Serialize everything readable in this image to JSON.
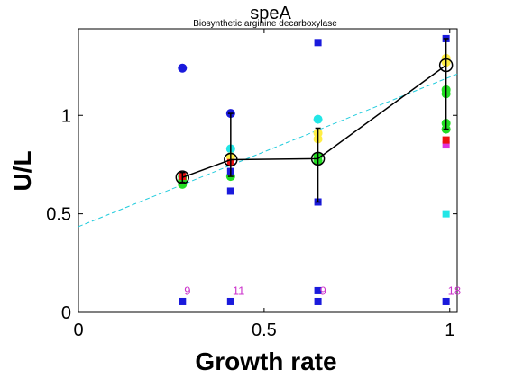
{
  "chart_data": {
    "type": "scatter",
    "title": "speA",
    "subtitle": "Biosynthetic arginine decarboxylase",
    "xlabel": "Growth rate",
    "ylabel": "U/L",
    "xlim": [
      0,
      1.02
    ],
    "ylim": [
      0,
      1.44
    ],
    "xticks": [
      0,
      0.5,
      1
    ],
    "yticks": [
      0,
      0.5,
      1
    ],
    "xtick_labels": [
      "0",
      "0.5",
      "1"
    ],
    "ytick_labels": [
      "0",
      "0.5",
      "1"
    ],
    "grid": false,
    "colors": {
      "mean_line": "#000000",
      "fit_line": "#22ccdd",
      "blue": "#1a1adc",
      "green": "#22dd22",
      "cyan": "#22e6e6",
      "yellow": "#ffee44",
      "red": "#ee1111",
      "magenta": "#dd33dd",
      "orange": "#f5a623"
    },
    "circle_points": [
      {
        "x": 0.28,
        "y": 1.24,
        "color": "blue"
      },
      {
        "x": 0.28,
        "y": 0.69,
        "color": "green"
      },
      {
        "x": 0.28,
        "y": 0.67,
        "color": "green"
      },
      {
        "x": 0.28,
        "y": 0.65,
        "color": "green"
      },
      {
        "x": 0.41,
        "y": 1.01,
        "color": "blue"
      },
      {
        "x": 0.41,
        "y": 0.83,
        "color": "cyan"
      },
      {
        "x": 0.41,
        "y": 0.79,
        "color": "yellow"
      },
      {
        "x": 0.41,
        "y": 0.69,
        "color": "green"
      },
      {
        "x": 0.645,
        "y": 0.98,
        "color": "cyan"
      },
      {
        "x": 0.645,
        "y": 0.91,
        "color": "yellow"
      },
      {
        "x": 0.645,
        "y": 0.88,
        "color": "yellow"
      },
      {
        "x": 0.645,
        "y": 0.79,
        "color": "green"
      },
      {
        "x": 0.645,
        "y": 0.77,
        "color": "green"
      },
      {
        "x": 0.99,
        "y": 1.29,
        "color": "yellow"
      },
      {
        "x": 0.99,
        "y": 1.27,
        "color": "yellow"
      },
      {
        "x": 0.99,
        "y": 1.13,
        "color": "green"
      },
      {
        "x": 0.99,
        "y": 1.11,
        "color": "green"
      },
      {
        "x": 0.99,
        "y": 0.96,
        "color": "green"
      },
      {
        "x": 0.99,
        "y": 0.93,
        "color": "green"
      }
    ],
    "square_points": [
      {
        "x": 0.28,
        "y": 0.055,
        "color": "blue"
      },
      {
        "x": 0.28,
        "y": 0.69,
        "color": "red"
      },
      {
        "x": 0.41,
        "y": 0.055,
        "color": "blue"
      },
      {
        "x": 0.41,
        "y": 0.615,
        "color": "blue"
      },
      {
        "x": 0.41,
        "y": 0.715,
        "color": "blue"
      },
      {
        "x": 0.41,
        "y": 0.76,
        "color": "red"
      },
      {
        "x": 0.645,
        "y": 0.055,
        "color": "blue"
      },
      {
        "x": 0.645,
        "y": 0.11,
        "color": "blue"
      },
      {
        "x": 0.645,
        "y": 0.56,
        "color": "blue"
      },
      {
        "x": 0.645,
        "y": 1.37,
        "color": "blue"
      },
      {
        "x": 0.99,
        "y": 0.055,
        "color": "blue"
      },
      {
        "x": 0.99,
        "y": 0.5,
        "color": "cyan"
      },
      {
        "x": 0.99,
        "y": 0.85,
        "color": "magenta"
      },
      {
        "x": 0.99,
        "y": 0.875,
        "color": "red"
      },
      {
        "x": 0.99,
        "y": 1.39,
        "color": "blue"
      }
    ],
    "mean_series": {
      "x": [
        0.28,
        0.41,
        0.645,
        0.99
      ],
      "y": [
        0.685,
        0.775,
        0.78,
        1.255
      ],
      "err_low": [
        0.66,
        0.69,
        0.56,
        0.93
      ],
      "err_high": [
        0.71,
        1.01,
        0.935,
        1.39
      ]
    },
    "fit_line": {
      "x": [
        0,
        1.02
      ],
      "y": [
        0.435,
        1.21
      ]
    },
    "count_labels": [
      {
        "x": 0.28,
        "y": 0.09,
        "text": "9"
      },
      {
        "x": 0.41,
        "y": 0.09,
        "text": "11"
      },
      {
        "x": 0.645,
        "y": 0.09,
        "text": "9"
      },
      {
        "x": 0.99,
        "y": 0.09,
        "text": "18"
      }
    ]
  }
}
